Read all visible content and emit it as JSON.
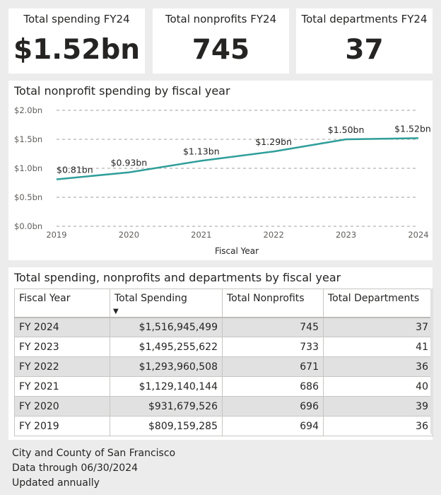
{
  "kpis": [
    {
      "title": "Total spending FY24",
      "value": "$1.52bn"
    },
    {
      "title": "Total nonprofits FY24",
      "value": "745"
    },
    {
      "title": "Total departments FY24",
      "value": "37"
    }
  ],
  "line_chart": {
    "title": "Total nonprofit spending by fiscal year",
    "xlabel": "Fiscal Year"
  },
  "chart_data": {
    "type": "line",
    "title": "Total nonprofit spending by fiscal year",
    "xlabel": "Fiscal Year",
    "ylabel": "",
    "x": [
      "2019",
      "2020",
      "2021",
      "2022",
      "2023",
      "2024"
    ],
    "series": [
      {
        "values": [
          0.81,
          0.93,
          1.13,
          1.29,
          1.5,
          1.52
        ],
        "labels": [
          "$0.81bn",
          "$0.93bn",
          "$1.13bn",
          "$1.29bn",
          "$1.50bn",
          "$1.52bn"
        ]
      }
    ],
    "ylim": [
      0,
      2.0
    ],
    "yticks": [
      0,
      0.5,
      1.0,
      1.5,
      2.0
    ],
    "ytick_labels": [
      "$0.0bn",
      "$0.5bn",
      "$1.0bn",
      "$1.5bn",
      "$2.0bn"
    ],
    "grid": true,
    "line_color": "#2f9e9a"
  },
  "table": {
    "title": "Total spending, nonprofits and departments by fiscal year",
    "columns": [
      "Fiscal Year",
      "Total Spending",
      "Total Nonprofits",
      "Total Departments"
    ],
    "sort_indicator": "▼",
    "rows": [
      [
        "FY 2024",
        "$1,516,945,499",
        "745",
        "37"
      ],
      [
        "FY 2023",
        "$1,495,255,622",
        "733",
        "41"
      ],
      [
        "FY 2022",
        "$1,293,960,508",
        "671",
        "36"
      ],
      [
        "FY 2021",
        "$1,129,140,144",
        "686",
        "40"
      ],
      [
        "FY 2020",
        "$931,679,526",
        "696",
        "39"
      ],
      [
        "FY 2019",
        "$809,159,285",
        "694",
        "36"
      ]
    ]
  },
  "footer": {
    "line1": "City and County of San Francisco",
    "line2": "Data through 06/30/2024",
    "line3": "Updated annually"
  }
}
